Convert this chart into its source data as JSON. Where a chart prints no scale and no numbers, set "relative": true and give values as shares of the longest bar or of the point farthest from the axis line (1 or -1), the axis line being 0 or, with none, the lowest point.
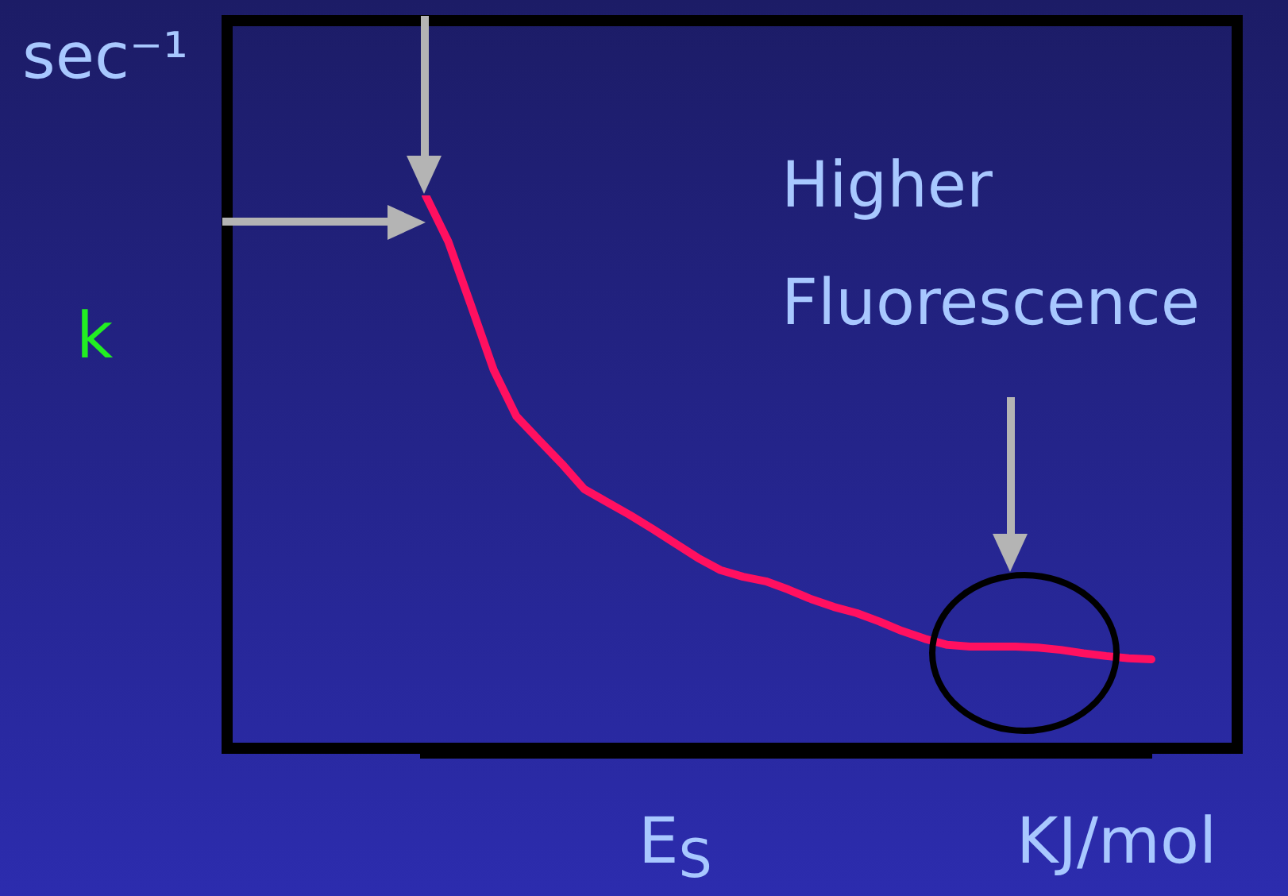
{
  "chart_data": {
    "type": "line",
    "relative": true,
    "tick_labels": false,
    "legend": false,
    "marker": "none",
    "line_style": "solid",
    "xlabel": "E$_{S}$",
    "ylabel": "k",
    "annotations": [
      "sec⁻¹",
      "KJ/mol",
      "Higher Fluorescence"
    ],
    "categories": [
      null,
      null,
      null,
      null,
      null,
      null,
      null,
      null,
      null,
      null,
      null,
      null,
      null,
      null,
      null,
      null,
      null,
      null,
      null,
      null,
      null,
      null,
      null,
      null,
      null,
      null,
      null,
      null,
      null,
      null,
      null,
      null,
      null
    ],
    "series": [
      {
        "color": "#ff1060",
        "values": [
          1,
          0.917,
          0.803,
          0.687,
          0.604,
          0.561,
          0.519,
          0.473,
          0.45,
          0.427,
          0.402,
          0.376,
          0.35,
          0.328,
          0.316,
          0.308,
          0.293,
          0.276,
          0.262,
          0.251,
          0.236,
          0.219,
          0.205,
          0.194,
          0.191,
          0.191,
          0.191,
          0.189,
          0.185,
          0.179,
          0.174,
          0.17,
          0.168
        ]
      }
    ]
  }
}
